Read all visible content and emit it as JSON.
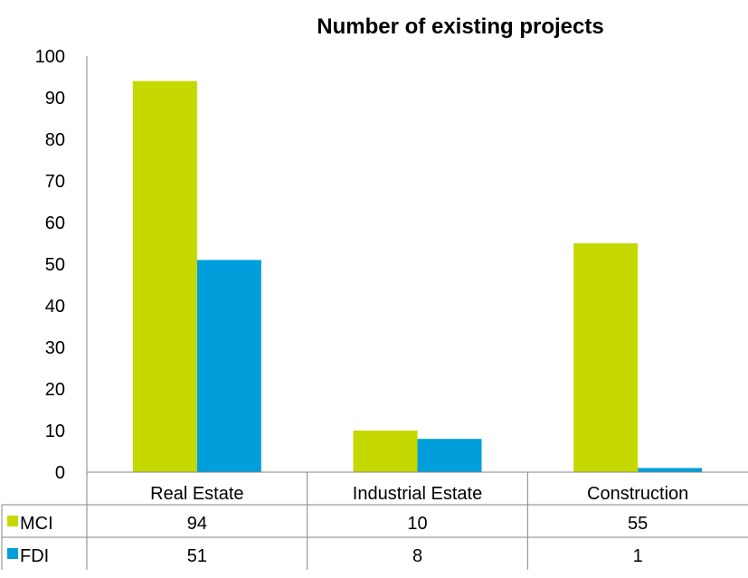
{
  "chart_data": {
    "type": "bar",
    "title": "Number of existing projects",
    "categories": [
      "Real Estate",
      "Industrial Estate",
      "Construction"
    ],
    "series": [
      {
        "name": "MCI",
        "values": [
          94,
          10,
          55
        ],
        "color": "#C5D800"
      },
      {
        "name": "FDI",
        "values": [
          51,
          8,
          1
        ],
        "color": "#009FDB"
      }
    ],
    "ylim": [
      0,
      100
    ],
    "yticks": [
      "0",
      "10",
      "20",
      "30",
      "40",
      "50",
      "60",
      "70",
      "80",
      "90",
      "100"
    ],
    "grid": false,
    "legend": "data-table",
    "table": [
      {
        "series": "MCI",
        "cells": [
          "94",
          "10",
          "55"
        ]
      },
      {
        "series": "FDI",
        "cells": [
          "51",
          "8",
          "1"
        ]
      }
    ]
  }
}
